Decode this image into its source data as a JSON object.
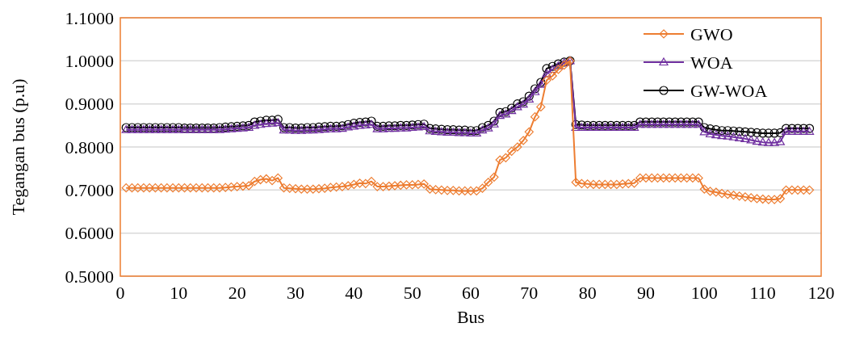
{
  "chart_data": {
    "type": "line",
    "xlabel": "Bus",
    "ylabel": "Tegangan bus (p.u)",
    "x": [
      1,
      2,
      3,
      4,
      5,
      6,
      7,
      8,
      9,
      10,
      11,
      12,
      13,
      14,
      15,
      16,
      17,
      18,
      19,
      20,
      21,
      22,
      23,
      24,
      25,
      26,
      27,
      28,
      29,
      30,
      31,
      32,
      33,
      34,
      35,
      36,
      37,
      38,
      39,
      40,
      41,
      42,
      43,
      44,
      45,
      46,
      47,
      48,
      49,
      50,
      51,
      52,
      53,
      54,
      55,
      56,
      57,
      58,
      59,
      60,
      61,
      62,
      63,
      64,
      65,
      66,
      67,
      68,
      69,
      70,
      71,
      72,
      73,
      74,
      75,
      76,
      77,
      78,
      79,
      80,
      81,
      82,
      83,
      84,
      85,
      86,
      87,
      88,
      89,
      90,
      91,
      92,
      93,
      94,
      95,
      96,
      97,
      98,
      99,
      100,
      101,
      102,
      103,
      104,
      105,
      106,
      107,
      108,
      109,
      110,
      111,
      112,
      113,
      114,
      115,
      116,
      117,
      118
    ],
    "xlim": [
      0,
      120
    ],
    "xticks": [
      0,
      10,
      20,
      30,
      40,
      50,
      60,
      70,
      80,
      90,
      100,
      110,
      120
    ],
    "ylim": [
      0.5,
      1.1
    ],
    "yticks": [
      {
        "value": 0.5,
        "label": "0.5000"
      },
      {
        "value": 0.6,
        "label": "0.6000"
      },
      {
        "value": 0.7,
        "label": "0.7000"
      },
      {
        "value": 0.8,
        "label": "0.8000"
      },
      {
        "value": 0.9,
        "label": "0.9000"
      },
      {
        "value": 1.0,
        "label": "1.0000"
      },
      {
        "value": 1.1,
        "label": "1.1000"
      }
    ],
    "grid": "y",
    "legend": "top right",
    "series": [
      {
        "name": "GWO",
        "color": "#ed7d31",
        "marker": "diamond",
        "values": [
          0.705,
          0.705,
          0.705,
          0.705,
          0.705,
          0.705,
          0.705,
          0.705,
          0.705,
          0.705,
          0.705,
          0.705,
          0.705,
          0.705,
          0.705,
          0.705,
          0.705,
          0.706,
          0.707,
          0.708,
          0.709,
          0.71,
          0.72,
          0.724,
          0.726,
          0.722,
          0.728,
          0.705,
          0.704,
          0.703,
          0.702,
          0.702,
          0.702,
          0.703,
          0.704,
          0.706,
          0.707,
          0.708,
          0.71,
          0.713,
          0.716,
          0.715,
          0.72,
          0.708,
          0.708,
          0.709,
          0.71,
          0.711,
          0.712,
          0.712,
          0.713,
          0.714,
          0.702,
          0.701,
          0.7,
          0.699,
          0.699,
          0.698,
          0.698,
          0.698,
          0.698,
          0.704,
          0.718,
          0.73,
          0.77,
          0.775,
          0.79,
          0.8,
          0.815,
          0.835,
          0.87,
          0.893,
          0.955,
          0.965,
          0.98,
          0.99,
          1.0,
          0.718,
          0.715,
          0.714,
          0.713,
          0.713,
          0.713,
          0.713,
          0.713,
          0.714,
          0.715,
          0.716,
          0.728,
          0.728,
          0.728,
          0.728,
          0.728,
          0.728,
          0.728,
          0.728,
          0.728,
          0.728,
          0.728,
          0.702,
          0.697,
          0.695,
          0.692,
          0.69,
          0.688,
          0.686,
          0.684,
          0.682,
          0.68,
          0.679,
          0.678,
          0.678,
          0.68,
          0.7,
          0.7,
          0.7,
          0.7,
          0.7
        ]
      },
      {
        "name": "WOA",
        "color": "#7030a0",
        "marker": "triangle",
        "values": [
          0.84,
          0.84,
          0.84,
          0.84,
          0.84,
          0.84,
          0.84,
          0.84,
          0.84,
          0.84,
          0.84,
          0.84,
          0.84,
          0.84,
          0.84,
          0.84,
          0.84,
          0.841,
          0.842,
          0.843,
          0.844,
          0.845,
          0.85,
          0.852,
          0.854,
          0.855,
          0.856,
          0.839,
          0.839,
          0.838,
          0.838,
          0.839,
          0.839,
          0.84,
          0.841,
          0.842,
          0.842,
          0.843,
          0.846,
          0.848,
          0.85,
          0.851,
          0.852,
          0.842,
          0.842,
          0.843,
          0.843,
          0.844,
          0.844,
          0.845,
          0.846,
          0.847,
          0.837,
          0.836,
          0.835,
          0.834,
          0.834,
          0.833,
          0.833,
          0.832,
          0.832,
          0.839,
          0.844,
          0.853,
          0.873,
          0.876,
          0.884,
          0.893,
          0.899,
          0.911,
          0.928,
          0.945,
          0.97,
          0.98,
          0.988,
          0.995,
          1.0,
          0.845,
          0.845,
          0.845,
          0.845,
          0.845,
          0.845,
          0.845,
          0.845,
          0.845,
          0.845,
          0.845,
          0.852,
          0.852,
          0.852,
          0.852,
          0.852,
          0.852,
          0.852,
          0.852,
          0.852,
          0.852,
          0.852,
          0.835,
          0.83,
          0.828,
          0.826,
          0.825,
          0.823,
          0.821,
          0.819,
          0.816,
          0.813,
          0.811,
          0.81,
          0.81,
          0.812,
          0.836,
          0.836,
          0.836,
          0.836,
          0.836
        ]
      },
      {
        "name": "GW-WOA",
        "color": "#000000",
        "marker": "circle",
        "values": [
          0.845,
          0.845,
          0.845,
          0.845,
          0.845,
          0.845,
          0.845,
          0.845,
          0.845,
          0.845,
          0.844,
          0.844,
          0.844,
          0.844,
          0.844,
          0.844,
          0.845,
          0.846,
          0.847,
          0.848,
          0.849,
          0.85,
          0.858,
          0.86,
          0.862,
          0.862,
          0.864,
          0.845,
          0.845,
          0.844,
          0.844,
          0.845,
          0.845,
          0.846,
          0.847,
          0.848,
          0.848,
          0.849,
          0.852,
          0.855,
          0.857,
          0.858,
          0.86,
          0.848,
          0.848,
          0.849,
          0.849,
          0.85,
          0.85,
          0.851,
          0.852,
          0.853,
          0.843,
          0.842,
          0.841,
          0.84,
          0.84,
          0.839,
          0.839,
          0.838,
          0.838,
          0.845,
          0.85,
          0.86,
          0.88,
          0.882,
          0.89,
          0.9,
          0.905,
          0.918,
          0.935,
          0.95,
          0.982,
          0.987,
          0.993,
          0.997,
          1.0,
          0.852,
          0.851,
          0.85,
          0.85,
          0.85,
          0.85,
          0.85,
          0.85,
          0.85,
          0.85,
          0.85,
          0.858,
          0.858,
          0.858,
          0.858,
          0.858,
          0.858,
          0.858,
          0.858,
          0.858,
          0.858,
          0.858,
          0.845,
          0.842,
          0.84,
          0.838,
          0.838,
          0.837,
          0.836,
          0.835,
          0.834,
          0.833,
          0.832,
          0.832,
          0.832,
          0.833,
          0.843,
          0.843,
          0.843,
          0.843,
          0.843
        ]
      }
    ]
  }
}
